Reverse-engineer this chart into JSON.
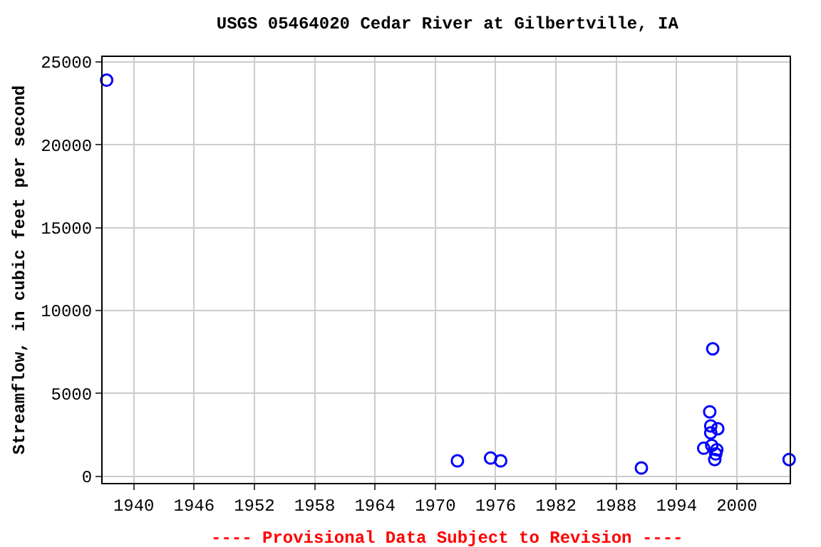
{
  "chart_data": {
    "type": "scatter",
    "title": "USGS 05464020 Cedar River at Gilbertville, IA",
    "ylabel": "Streamflow, in cubic feet per second",
    "annotations": [
      "---- Provisional Data Subject to Revision ----"
    ],
    "x": [
      1937.3,
      1972.2,
      1975.5,
      1976.5,
      1990.5,
      1997.6,
      1997.3,
      1997.4,
      1997.4,
      1998.1,
      1996.7,
      1997.5,
      1998.0,
      1997.9,
      1997.8,
      2005.2
    ],
    "values": [
      23900,
      930,
      1100,
      930,
      500,
      7690,
      3890,
      3040,
      2620,
      2870,
      1690,
      1860,
      1600,
      1350,
      1010,
      1010
    ],
    "color": "#0000ff",
    "marker": "circle",
    "xlim": [
      1936.9,
      2005.25
    ],
    "xticks": [
      1940,
      1946,
      1952,
      1958,
      1964,
      1970,
      1976,
      1982,
      1988,
      1994,
      2000
    ],
    "ylim": [
      -400,
      25300
    ],
    "yticks": [
      0,
      5000,
      10000,
      15000,
      20000,
      25000
    ],
    "grid": true,
    "legend": false
  }
}
